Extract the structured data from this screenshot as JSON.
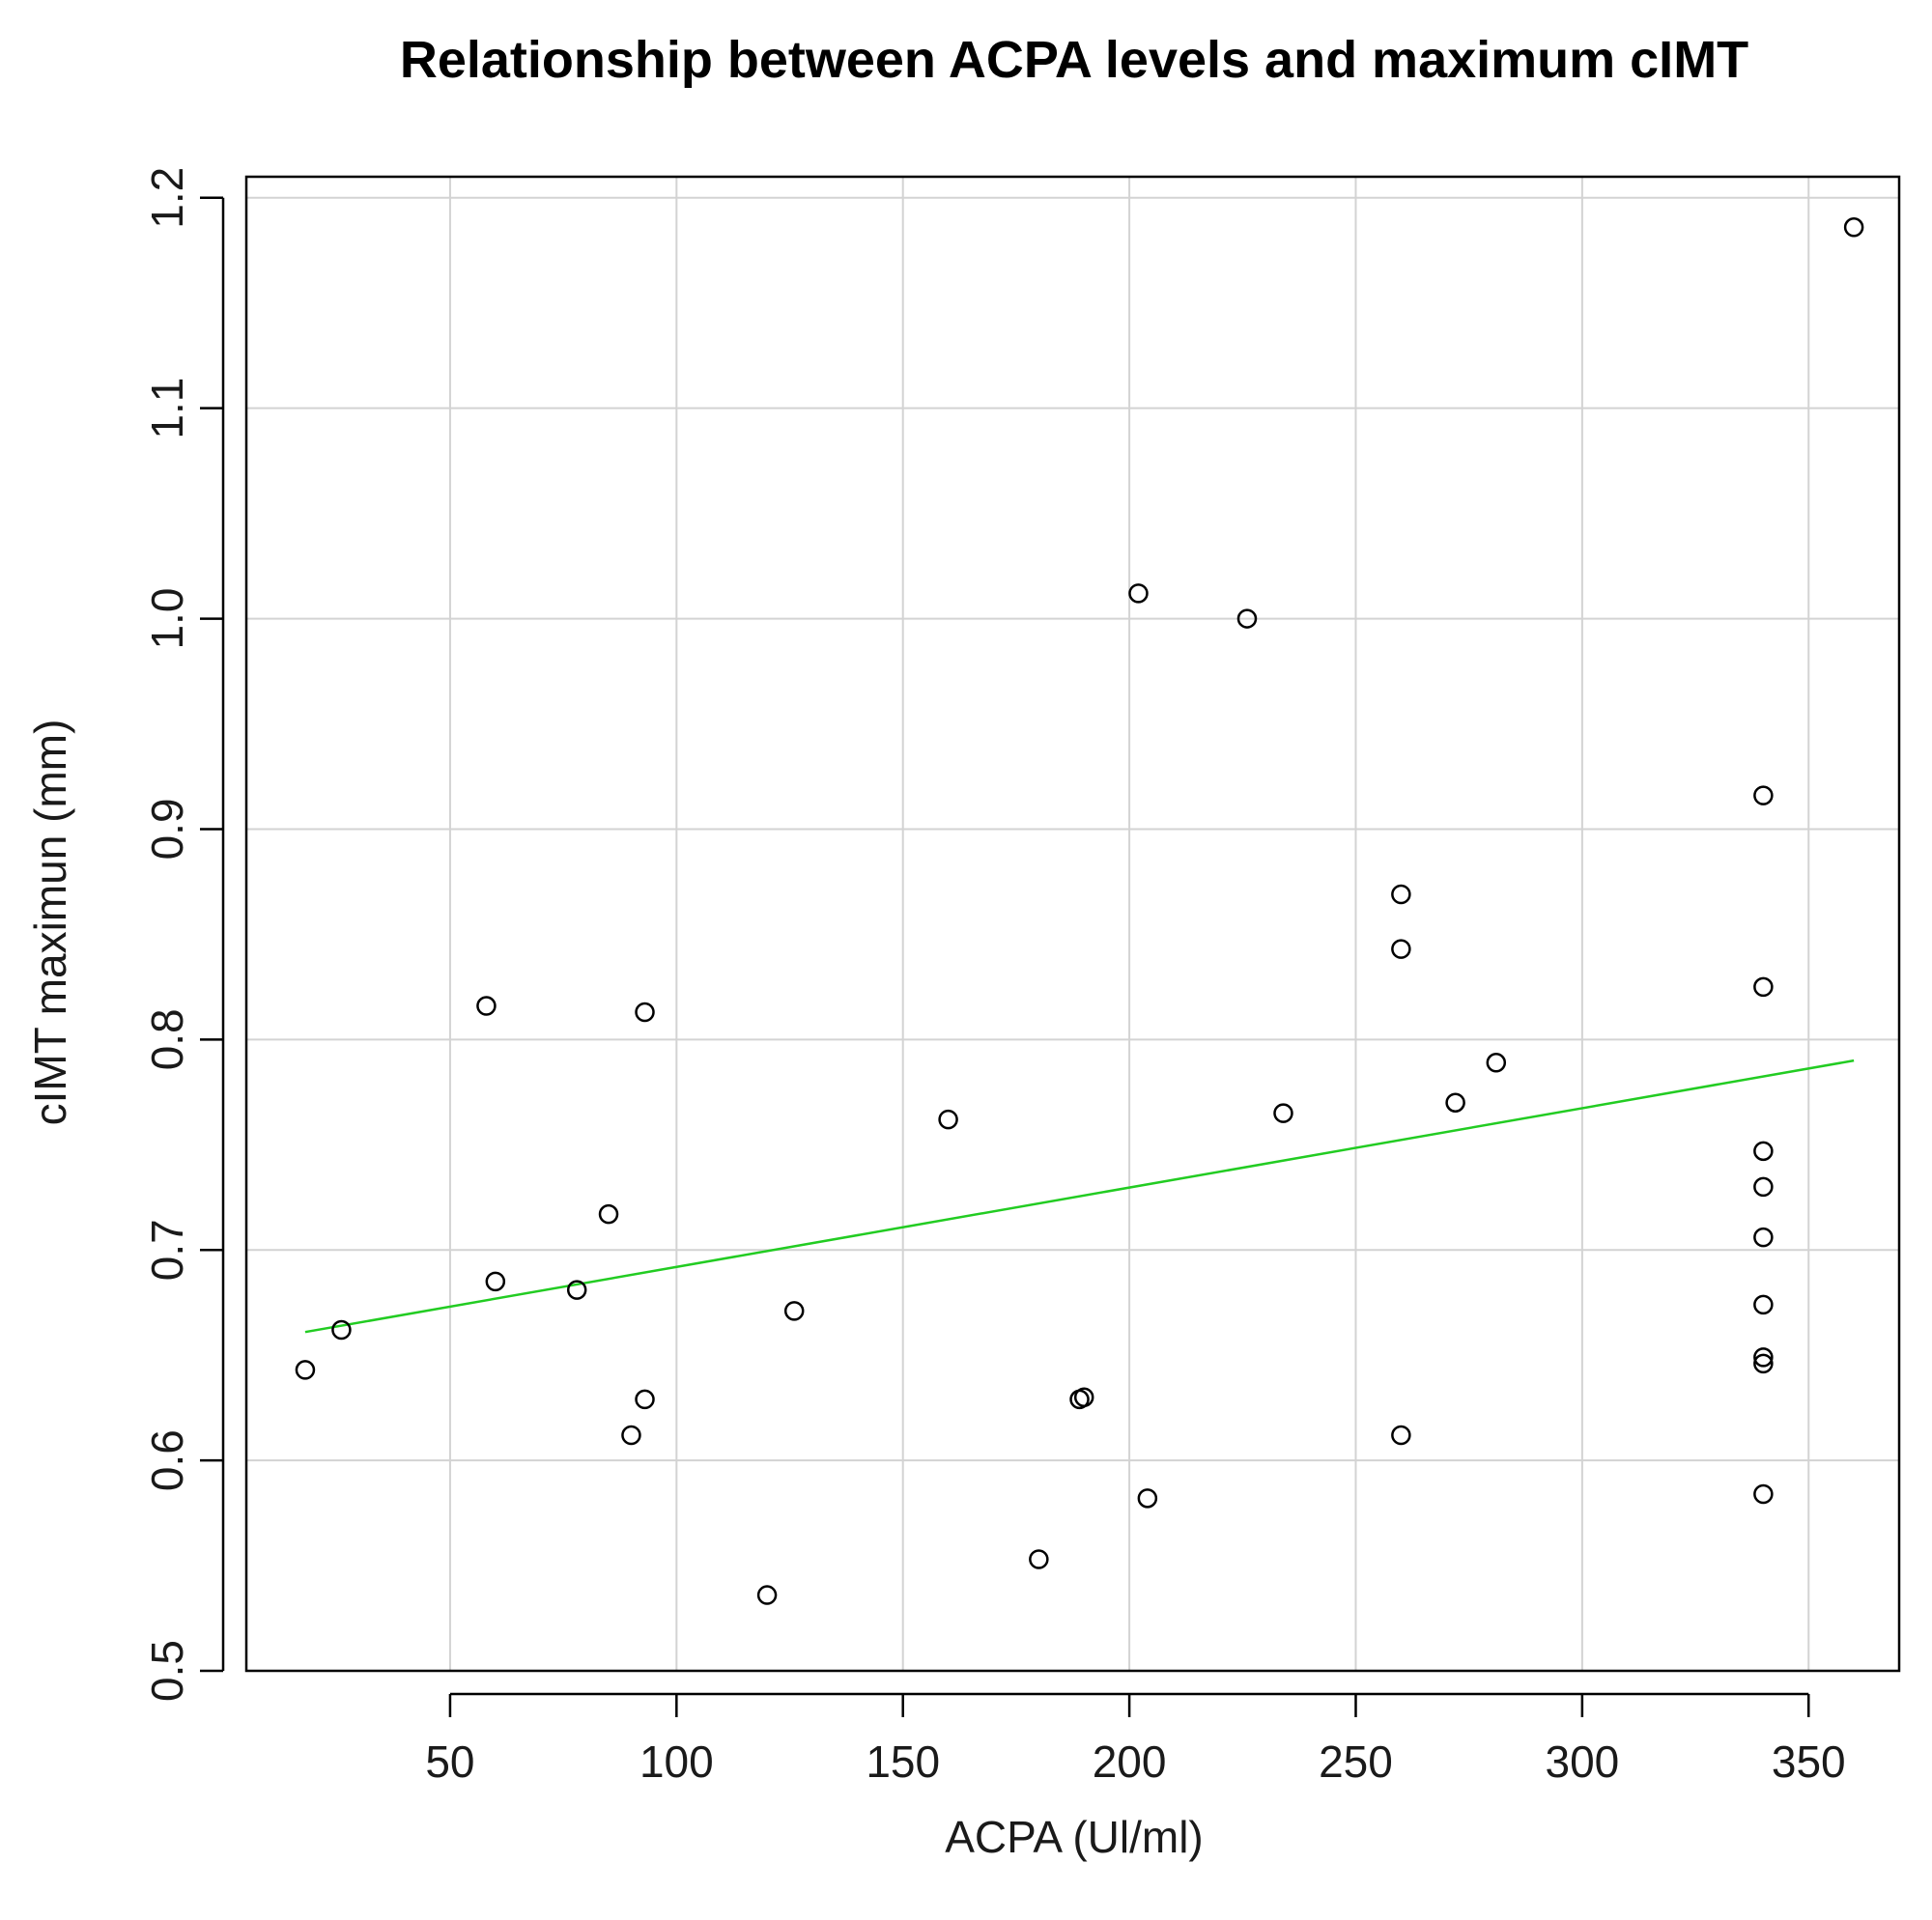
{
  "chart_data": {
    "type": "scatter",
    "title": "Relationship between ACPA levels and maximum cIMT",
    "xlabel": "ACPA (Ul/ml)",
    "ylabel": "cIMT maximun (mm)",
    "xlim": [
      5,
      370
    ],
    "ylim": [
      0.5,
      1.21
    ],
    "x_ticks": [
      50,
      100,
      150,
      200,
      250,
      300,
      350
    ],
    "x_tick_labels": [
      "50",
      "100",
      "150",
      "200",
      "250",
      "300",
      "350"
    ],
    "y_ticks": [
      0.5,
      0.6,
      0.7,
      0.8,
      0.9,
      1.0,
      1.1,
      1.2
    ],
    "y_tick_labels": [
      "0.5",
      "0.6",
      "0.7",
      "0.8",
      "0.9",
      "1.0",
      "1.1",
      "1.2"
    ],
    "grid": true,
    "points": [
      {
        "x": 18,
        "y": 0.643
      },
      {
        "x": 26,
        "y": 0.662
      },
      {
        "x": 58,
        "y": 0.816
      },
      {
        "x": 60,
        "y": 0.685
      },
      {
        "x": 78,
        "y": 0.681
      },
      {
        "x": 85,
        "y": 0.717
      },
      {
        "x": 90,
        "y": 0.612
      },
      {
        "x": 93,
        "y": 0.629
      },
      {
        "x": 93,
        "y": 0.813
      },
      {
        "x": 120,
        "y": 0.536
      },
      {
        "x": 126,
        "y": 0.671
      },
      {
        "x": 160,
        "y": 0.762
      },
      {
        "x": 180,
        "y": 0.553
      },
      {
        "x": 189,
        "y": 0.629
      },
      {
        "x": 190,
        "y": 0.63
      },
      {
        "x": 202,
        "y": 1.012
      },
      {
        "x": 204,
        "y": 0.582
      },
      {
        "x": 226,
        "y": 1.0
      },
      {
        "x": 234,
        "y": 0.765
      },
      {
        "x": 260,
        "y": 0.869
      },
      {
        "x": 260,
        "y": 0.843
      },
      {
        "x": 260,
        "y": 0.612
      },
      {
        "x": 272,
        "y": 0.77
      },
      {
        "x": 281,
        "y": 0.789
      },
      {
        "x": 340,
        "y": 0.916
      },
      {
        "x": 340,
        "y": 0.825
      },
      {
        "x": 340,
        "y": 0.747
      },
      {
        "x": 340,
        "y": 0.73
      },
      {
        "x": 340,
        "y": 0.706
      },
      {
        "x": 340,
        "y": 0.674
      },
      {
        "x": 340,
        "y": 0.649
      },
      {
        "x": 340,
        "y": 0.646
      },
      {
        "x": 340,
        "y": 0.584
      },
      {
        "x": 360,
        "y": 1.186
      }
    ],
    "trend_line": {
      "x": [
        18,
        360
      ],
      "y": [
        0.661,
        0.79
      ]
    },
    "colors": {
      "points": "#000000",
      "trend_line": "#22cc22",
      "grid": "#d3d3d3",
      "frame": "#000000"
    }
  }
}
